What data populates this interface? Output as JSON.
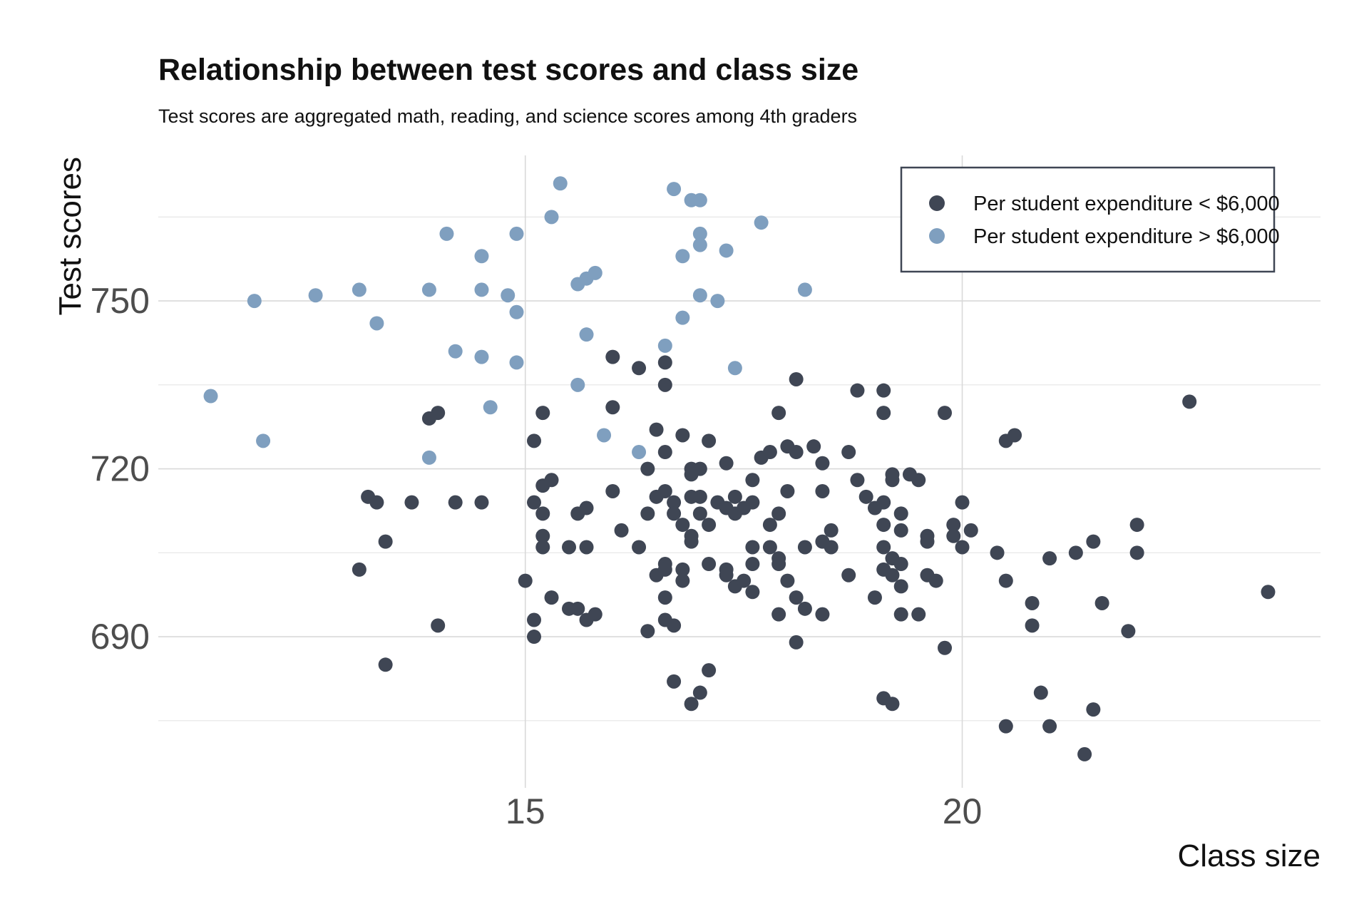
{
  "chart_data": {
    "type": "scatter",
    "title": "Relationship between test scores and class size",
    "subtitle": "Test scores are aggregated math, reading, and science scores among 4th graders",
    "xlabel": "Class size",
    "ylabel": "Test scores",
    "xlim": [
      10.8,
      24.1
    ],
    "ylim": [
      663,
      776
    ],
    "x_ticks": [
      "15",
      "20"
    ],
    "y_ticks": [
      "690",
      "720",
      "750"
    ],
    "x_tick_values": [
      15,
      20
    ],
    "y_tick_values": [
      690,
      720,
      750
    ],
    "x_minor_gridlines": [],
    "y_minor_gridlines": [
      675,
      705,
      735,
      765
    ],
    "grid": true,
    "legend_position": "top-right",
    "series": [
      {
        "name": "Per student expenditure < $6,000",
        "color": "#3f4654",
        "points": [
          [
            13.1,
            702
          ],
          [
            13.2,
            715
          ],
          [
            13.3,
            714
          ],
          [
            13.4,
            707
          ],
          [
            13.4,
            685
          ],
          [
            13.7,
            714
          ],
          [
            13.9,
            729
          ],
          [
            14.0,
            730
          ],
          [
            14.0,
            692
          ],
          [
            14.2,
            714
          ],
          [
            14.5,
            714
          ],
          [
            15.0,
            700
          ],
          [
            15.1,
            725
          ],
          [
            15.1,
            714
          ],
          [
            15.1,
            693
          ],
          [
            15.1,
            690
          ],
          [
            15.2,
            730
          ],
          [
            15.2,
            717
          ],
          [
            15.2,
            712
          ],
          [
            15.2,
            708
          ],
          [
            15.2,
            706
          ],
          [
            15.3,
            718
          ],
          [
            15.3,
            697
          ],
          [
            15.5,
            706
          ],
          [
            15.5,
            695
          ],
          [
            15.6,
            712
          ],
          [
            15.6,
            695
          ],
          [
            15.7,
            713
          ],
          [
            15.7,
            706
          ],
          [
            15.7,
            693
          ],
          [
            15.8,
            694
          ],
          [
            16.0,
            740
          ],
          [
            16.0,
            731
          ],
          [
            16.0,
            716
          ],
          [
            16.1,
            709
          ],
          [
            16.3,
            738
          ],
          [
            16.3,
            706
          ],
          [
            16.4,
            720
          ],
          [
            16.4,
            712
          ],
          [
            16.4,
            691
          ],
          [
            16.5,
            727
          ],
          [
            16.5,
            715
          ],
          [
            16.5,
            701
          ],
          [
            16.6,
            739
          ],
          [
            16.6,
            735
          ],
          [
            16.6,
            723
          ],
          [
            16.6,
            716
          ],
          [
            16.6,
            703
          ],
          [
            16.6,
            702
          ],
          [
            16.6,
            697
          ],
          [
            16.6,
            693
          ],
          [
            16.7,
            714
          ],
          [
            16.7,
            712
          ],
          [
            16.7,
            692
          ],
          [
            16.7,
            682
          ],
          [
            16.8,
            726
          ],
          [
            16.8,
            710
          ],
          [
            16.8,
            702
          ],
          [
            16.8,
            700
          ],
          [
            16.9,
            720
          ],
          [
            16.9,
            719
          ],
          [
            16.9,
            715
          ],
          [
            16.9,
            708
          ],
          [
            16.9,
            707
          ],
          [
            16.9,
            678
          ],
          [
            17.0,
            720
          ],
          [
            17.0,
            715
          ],
          [
            17.0,
            712
          ],
          [
            17.0,
            680
          ],
          [
            17.1,
            725
          ],
          [
            17.1,
            710
          ],
          [
            17.1,
            703
          ],
          [
            17.1,
            684
          ],
          [
            17.2,
            714
          ],
          [
            17.3,
            721
          ],
          [
            17.3,
            713
          ],
          [
            17.3,
            702
          ],
          [
            17.3,
            701
          ],
          [
            17.4,
            715
          ],
          [
            17.4,
            712
          ],
          [
            17.4,
            699
          ],
          [
            17.5,
            713
          ],
          [
            17.5,
            700
          ],
          [
            17.6,
            718
          ],
          [
            17.6,
            714
          ],
          [
            17.6,
            706
          ],
          [
            17.6,
            703
          ],
          [
            17.6,
            698
          ],
          [
            17.7,
            722
          ],
          [
            17.8,
            723
          ],
          [
            17.8,
            710
          ],
          [
            17.8,
            706
          ],
          [
            17.9,
            730
          ],
          [
            17.9,
            712
          ],
          [
            17.9,
            704
          ],
          [
            17.9,
            703
          ],
          [
            17.9,
            694
          ],
          [
            18.0,
            724
          ],
          [
            18.0,
            716
          ],
          [
            18.0,
            700
          ],
          [
            18.1,
            736
          ],
          [
            18.1,
            723
          ],
          [
            18.1,
            697
          ],
          [
            18.1,
            689
          ],
          [
            18.2,
            706
          ],
          [
            18.2,
            695
          ],
          [
            18.3,
            724
          ],
          [
            18.4,
            721
          ],
          [
            18.4,
            716
          ],
          [
            18.4,
            707
          ],
          [
            18.4,
            694
          ],
          [
            18.5,
            709
          ],
          [
            18.5,
            706
          ],
          [
            18.7,
            723
          ],
          [
            18.7,
            701
          ],
          [
            18.8,
            734
          ],
          [
            18.8,
            718
          ],
          [
            18.9,
            715
          ],
          [
            19.0,
            713
          ],
          [
            19.0,
            697
          ],
          [
            19.1,
            734
          ],
          [
            19.1,
            730
          ],
          [
            19.1,
            714
          ],
          [
            19.1,
            710
          ],
          [
            19.1,
            706
          ],
          [
            19.1,
            702
          ],
          [
            19.1,
            679
          ],
          [
            19.2,
            719
          ],
          [
            19.2,
            718
          ],
          [
            19.2,
            704
          ],
          [
            19.2,
            701
          ],
          [
            19.2,
            678
          ],
          [
            19.3,
            712
          ],
          [
            19.3,
            709
          ],
          [
            19.3,
            703
          ],
          [
            19.3,
            699
          ],
          [
            19.3,
            694
          ],
          [
            19.4,
            719
          ],
          [
            19.5,
            718
          ],
          [
            19.5,
            694
          ],
          [
            19.6,
            708
          ],
          [
            19.6,
            707
          ],
          [
            19.6,
            701
          ],
          [
            19.7,
            700
          ],
          [
            19.8,
            730
          ],
          [
            19.8,
            688
          ],
          [
            19.9,
            710
          ],
          [
            19.9,
            708
          ],
          [
            20.0,
            714
          ],
          [
            20.0,
            706
          ],
          [
            20.1,
            709
          ],
          [
            20.4,
            705
          ],
          [
            20.5,
            725
          ],
          [
            20.5,
            700
          ],
          [
            20.5,
            674
          ],
          [
            20.6,
            726
          ],
          [
            20.8,
            696
          ],
          [
            20.8,
            692
          ],
          [
            20.9,
            680
          ],
          [
            21.0,
            704
          ],
          [
            21.0,
            674
          ],
          [
            21.3,
            705
          ],
          [
            21.4,
            669
          ],
          [
            21.5,
            707
          ],
          [
            21.5,
            677
          ],
          [
            21.6,
            696
          ],
          [
            21.9,
            691
          ],
          [
            22.0,
            710
          ],
          [
            22.0,
            705
          ],
          [
            22.6,
            732
          ],
          [
            23.5,
            698
          ]
        ]
      },
      {
        "name": "Per student expenditure > $6,000",
        "color": "#7f9fbf",
        "points": [
          [
            11.4,
            733
          ],
          [
            11.9,
            750
          ],
          [
            12.0,
            725
          ],
          [
            12.6,
            751
          ],
          [
            13.1,
            752
          ],
          [
            13.3,
            746
          ],
          [
            13.9,
            752
          ],
          [
            13.9,
            722
          ],
          [
            14.1,
            762
          ],
          [
            14.2,
            741
          ],
          [
            14.5,
            758
          ],
          [
            14.5,
            752
          ],
          [
            14.5,
            740
          ],
          [
            14.6,
            731
          ],
          [
            14.8,
            751
          ],
          [
            14.9,
            762
          ],
          [
            14.9,
            748
          ],
          [
            14.9,
            739
          ],
          [
            15.3,
            765
          ],
          [
            15.4,
            771
          ],
          [
            15.6,
            753
          ],
          [
            15.6,
            735
          ],
          [
            15.7,
            754
          ],
          [
            15.7,
            744
          ],
          [
            15.8,
            755
          ],
          [
            15.9,
            726
          ],
          [
            16.3,
            723
          ],
          [
            16.6,
            742
          ],
          [
            16.7,
            770
          ],
          [
            16.8,
            758
          ],
          [
            16.8,
            747
          ],
          [
            16.9,
            768
          ],
          [
            17.0,
            768
          ],
          [
            17.0,
            762
          ],
          [
            17.0,
            760
          ],
          [
            17.0,
            751
          ],
          [
            17.2,
            750
          ],
          [
            17.3,
            759
          ],
          [
            17.4,
            738
          ],
          [
            17.7,
            764
          ],
          [
            18.2,
            752
          ]
        ]
      }
    ]
  }
}
